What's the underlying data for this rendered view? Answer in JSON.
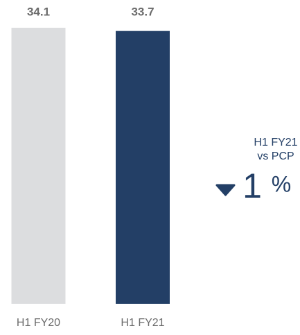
{
  "chart_data": {
    "type": "bar",
    "categories": [
      "H1 FY20",
      "H1 FY21"
    ],
    "values": [
      34.1,
      33.7
    ],
    "colors": [
      "#dcdddf",
      "#233f66"
    ],
    "annotation": {
      "lines": [
        "H1 FY21",
        "vs PCP"
      ],
      "change": 1,
      "unit": "%",
      "direction": "down"
    }
  }
}
